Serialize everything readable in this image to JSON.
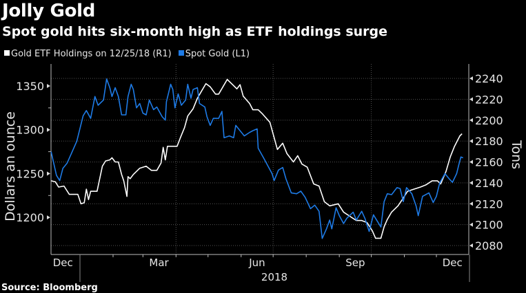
{
  "title": "Jolly Gold",
  "subtitle": "Spot gold hits six-month high as ETF holdings surge",
  "source": "Source: Bloomberg",
  "chart_data": {
    "type": "line",
    "grid": true,
    "legend_placement": "top-left",
    "xlabel": "",
    "x_tick_labels": [
      "Dec",
      "Mar",
      "Jun",
      "Sep",
      "Dec"
    ],
    "x_year_label": "2018",
    "xlim": [
      "2017-12-05",
      "2019-01-01"
    ],
    "y_left": {
      "label": "Dollars an ounce",
      "ylim": [
        1165,
        1375
      ],
      "ticks": [
        1200,
        1250,
        1300,
        1350
      ]
    },
    "y_right": {
      "label": "Tons",
      "ylim": [
        2072,
        2253
      ],
      "ticks": [
        2080,
        2100,
        2120,
        2140,
        2160,
        2180,
        2200,
        2220,
        2240
      ]
    },
    "series": [
      {
        "name": "Gold ETF Holdings on 12/25/18 (R1)",
        "axis": "right",
        "color": "#ffffff",
        "points": [
          [
            "2017-12-05",
            2142
          ],
          [
            "2017-12-09",
            2141
          ],
          [
            "2017-12-12",
            2136
          ],
          [
            "2017-12-17",
            2137
          ],
          [
            "2017-12-22",
            2129
          ],
          [
            "2017-12-30",
            2129
          ],
          [
            "2018-01-02",
            2120
          ],
          [
            "2018-01-05",
            2121
          ],
          [
            "2018-01-07",
            2134
          ],
          [
            "2018-01-09",
            2124
          ],
          [
            "2018-01-11",
            2132
          ],
          [
            "2018-01-17",
            2132
          ],
          [
            "2018-01-22",
            2156
          ],
          [
            "2018-01-25",
            2161
          ],
          [
            "2018-01-29",
            2162
          ],
          [
            "2018-01-31",
            2164
          ],
          [
            "2018-02-03",
            2160
          ],
          [
            "2018-02-06",
            2160
          ],
          [
            "2018-02-09",
            2148
          ],
          [
            "2018-02-11",
            2142
          ],
          [
            "2018-02-14",
            2127
          ],
          [
            "2018-02-15",
            2146
          ],
          [
            "2018-02-17",
            2144
          ],
          [
            "2018-02-20",
            2148
          ],
          [
            "2018-02-26",
            2154
          ],
          [
            "2018-03-04",
            2156
          ],
          [
            "2018-03-09",
            2152
          ],
          [
            "2018-03-14",
            2152
          ],
          [
            "2018-03-18",
            2159
          ],
          [
            "2018-03-20",
            2174
          ],
          [
            "2018-03-22",
            2162
          ],
          [
            "2018-03-24",
            2175
          ],
          [
            "2018-03-29",
            2175
          ],
          [
            "2018-04-02",
            2175
          ],
          [
            "2018-04-05",
            2183
          ],
          [
            "2018-04-09",
            2193
          ],
          [
            "2018-04-12",
            2204
          ],
          [
            "2018-04-17",
            2211
          ],
          [
            "2018-04-21",
            2221
          ],
          [
            "2018-04-25",
            2228
          ],
          [
            "2018-04-29",
            2235
          ],
          [
            "2018-05-03",
            2232
          ],
          [
            "2018-05-08",
            2225
          ],
          [
            "2018-05-11",
            2225
          ],
          [
            "2018-05-15",
            2232
          ],
          [
            "2018-05-19",
            2239
          ],
          [
            "2018-05-24",
            2234
          ],
          [
            "2018-05-28",
            2230
          ],
          [
            "2018-05-31",
            2234
          ],
          [
            "2018-06-03",
            2223
          ],
          [
            "2018-06-09",
            2216
          ],
          [
            "2018-06-12",
            2210
          ],
          [
            "2018-06-17",
            2210
          ],
          [
            "2018-06-21",
            2206
          ],
          [
            "2018-06-28",
            2198
          ],
          [
            "2018-07-05",
            2172
          ],
          [
            "2018-07-10",
            2178
          ],
          [
            "2018-07-14",
            2168
          ],
          [
            "2018-07-20",
            2160
          ],
          [
            "2018-07-24",
            2166
          ],
          [
            "2018-07-28",
            2158
          ],
          [
            "2018-08-02",
            2155
          ],
          [
            "2018-08-08",
            2139
          ],
          [
            "2018-08-13",
            2137
          ],
          [
            "2018-08-18",
            2122
          ],
          [
            "2018-08-23",
            2118
          ],
          [
            "2018-08-31",
            2120
          ],
          [
            "2018-09-05",
            2112
          ],
          [
            "2018-09-11",
            2108
          ],
          [
            "2018-09-17",
            2104
          ],
          [
            "2018-09-22",
            2104
          ],
          [
            "2018-09-27",
            2102
          ],
          [
            "2018-10-02",
            2094
          ],
          [
            "2018-10-05",
            2087
          ],
          [
            "2018-10-10",
            2087
          ],
          [
            "2018-10-13",
            2098
          ],
          [
            "2018-10-16",
            2105
          ],
          [
            "2018-10-20",
            2112
          ],
          [
            "2018-10-26",
            2118
          ],
          [
            "2018-10-30",
            2124
          ],
          [
            "2018-11-04",
            2132
          ],
          [
            "2018-11-10",
            2134
          ],
          [
            "2018-11-16",
            2136
          ],
          [
            "2018-11-21",
            2138
          ],
          [
            "2018-11-27",
            2142
          ],
          [
            "2018-12-02",
            2142
          ],
          [
            "2018-12-05",
            2139
          ],
          [
            "2018-12-10",
            2151
          ],
          [
            "2018-12-14",
            2165
          ],
          [
            "2018-12-18",
            2175
          ],
          [
            "2018-12-23",
            2185
          ],
          [
            "2018-12-25",
            2187
          ]
        ]
      },
      {
        "name": "Spot Gold (L1)",
        "axis": "left",
        "color": "#1e7be6",
        "points": [
          [
            "2017-12-05",
            1275
          ],
          [
            "2017-12-07",
            1264
          ],
          [
            "2017-12-10",
            1248
          ],
          [
            "2017-12-13",
            1242
          ],
          [
            "2017-12-16",
            1256
          ],
          [
            "2017-12-20",
            1262
          ],
          [
            "2017-12-24",
            1273
          ],
          [
            "2017-12-29",
            1287
          ],
          [
            "2018-01-04",
            1316
          ],
          [
            "2018-01-07",
            1322
          ],
          [
            "2018-01-11",
            1313
          ],
          [
            "2018-01-15",
            1338
          ],
          [
            "2018-01-18",
            1328
          ],
          [
            "2018-01-23",
            1334
          ],
          [
            "2018-01-26",
            1358
          ],
          [
            "2018-01-29",
            1348
          ],
          [
            "2018-01-31",
            1338
          ],
          [
            "2018-02-03",
            1348
          ],
          [
            "2018-02-06",
            1338
          ],
          [
            "2018-02-09",
            1317
          ],
          [
            "2018-02-13",
            1317
          ],
          [
            "2018-02-15",
            1338
          ],
          [
            "2018-02-18",
            1352
          ],
          [
            "2018-02-20",
            1346
          ],
          [
            "2018-02-23",
            1325
          ],
          [
            "2018-02-26",
            1330
          ],
          [
            "2018-03-01",
            1319
          ],
          [
            "2018-03-04",
            1317
          ],
          [
            "2018-03-07",
            1334
          ],
          [
            "2018-03-11",
            1323
          ],
          [
            "2018-03-14",
            1326
          ],
          [
            "2018-03-19",
            1315
          ],
          [
            "2018-03-22",
            1311
          ],
          [
            "2018-03-23",
            1332
          ],
          [
            "2018-03-27",
            1352
          ],
          [
            "2018-03-29",
            1346
          ],
          [
            "2018-03-31",
            1325
          ],
          [
            "2018-04-03",
            1341
          ],
          [
            "2018-04-06",
            1328
          ],
          [
            "2018-04-10",
            1334
          ],
          [
            "2018-04-12",
            1352
          ],
          [
            "2018-04-15",
            1336
          ],
          [
            "2018-04-17",
            1346
          ],
          [
            "2018-04-21",
            1348
          ],
          [
            "2018-04-23",
            1330
          ],
          [
            "2018-04-28",
            1326
          ],
          [
            "2018-04-30",
            1315
          ],
          [
            "2018-05-03",
            1305
          ],
          [
            "2018-05-06",
            1313
          ],
          [
            "2018-05-11",
            1313
          ],
          [
            "2018-05-14",
            1321
          ],
          [
            "2018-05-16",
            1291
          ],
          [
            "2018-05-21",
            1293
          ],
          [
            "2018-05-25",
            1291
          ],
          [
            "2018-05-27",
            1305
          ],
          [
            "2018-05-31",
            1299
          ],
          [
            "2018-06-04",
            1293
          ],
          [
            "2018-06-09",
            1297
          ],
          [
            "2018-06-12",
            1299
          ],
          [
            "2018-06-16",
            1301
          ],
          [
            "2018-06-17",
            1279
          ],
          [
            "2018-06-22",
            1268
          ],
          [
            "2018-06-30",
            1250
          ],
          [
            "2018-07-02",
            1242
          ],
          [
            "2018-07-06",
            1254
          ],
          [
            "2018-07-10",
            1257
          ],
          [
            "2018-07-13",
            1244
          ],
          [
            "2018-07-18",
            1228
          ],
          [
            "2018-07-23",
            1227
          ],
          [
            "2018-07-27",
            1230
          ],
          [
            "2018-07-31",
            1223
          ],
          [
            "2018-08-05",
            1210
          ],
          [
            "2018-08-09",
            1214
          ],
          [
            "2018-08-13",
            1207
          ],
          [
            "2018-08-16",
            1176
          ],
          [
            "2018-08-20",
            1187
          ],
          [
            "2018-08-23",
            1197
          ],
          [
            "2018-08-25",
            1187
          ],
          [
            "2018-08-29",
            1211
          ],
          [
            "2018-09-01",
            1202
          ],
          [
            "2018-09-05",
            1193
          ],
          [
            "2018-09-08",
            1199
          ],
          [
            "2018-09-14",
            1206
          ],
          [
            "2018-09-17",
            1197
          ],
          [
            "2018-09-22",
            1207
          ],
          [
            "2018-09-25",
            1199
          ],
          [
            "2018-09-29",
            1184
          ],
          [
            "2018-10-03",
            1203
          ],
          [
            "2018-10-06",
            1197
          ],
          [
            "2018-10-10",
            1189
          ],
          [
            "2018-10-13",
            1218
          ],
          [
            "2018-10-16",
            1227
          ],
          [
            "2018-10-20",
            1226
          ],
          [
            "2018-10-25",
            1234
          ],
          [
            "2018-10-28",
            1233
          ],
          [
            "2018-10-31",
            1218
          ],
          [
            "2018-11-03",
            1234
          ],
          [
            "2018-11-08",
            1227
          ],
          [
            "2018-11-12",
            1213
          ],
          [
            "2018-11-14",
            1202
          ],
          [
            "2018-11-18",
            1224
          ],
          [
            "2018-11-24",
            1228
          ],
          [
            "2018-11-28",
            1217
          ],
          [
            "2018-12-01",
            1224
          ],
          [
            "2018-12-04",
            1239
          ],
          [
            "2018-12-09",
            1250
          ],
          [
            "2018-12-13",
            1244
          ],
          [
            "2018-12-16",
            1240
          ],
          [
            "2018-12-20",
            1250
          ],
          [
            "2018-12-22",
            1260
          ],
          [
            "2018-12-24",
            1269
          ],
          [
            "2018-12-26",
            1268
          ]
        ]
      }
    ]
  }
}
